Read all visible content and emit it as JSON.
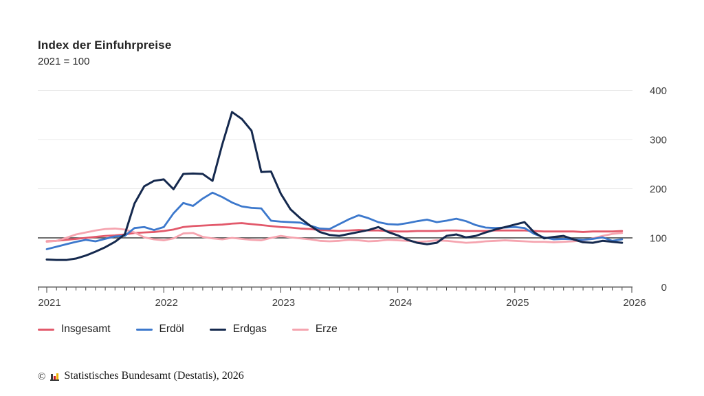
{
  "header": {
    "title": "Index der Einfuhrpreise",
    "subtitle": "2021 = 100"
  },
  "footer": {
    "copyright": "©",
    "logo_icon": "destatis-bar-chart-icon",
    "source": "Statistisches Bundesamt (Destatis), 2026"
  },
  "chart_data": {
    "type": "line",
    "title": "Index der Einfuhrpreise",
    "subtitle": "2021 = 100",
    "x_unit": "month",
    "x_start": "2021-01",
    "x_end": "2025-12",
    "x_tick_labels": [
      "2021",
      "2022",
      "2023",
      "2024",
      "2025",
      "2026"
    ],
    "ylim": [
      0,
      400
    ],
    "yticks": [
      0,
      100,
      200,
      300,
      400
    ],
    "reference_line_y": 100,
    "grid": "horizontal-light",
    "legend_position": "bottom-left",
    "style": {
      "axis_color": "#3f3f3f",
      "grid_color": "#e8e8e8",
      "tick_label_color": "#3d3d3d"
    },
    "series": [
      {
        "name": "Insgesamt",
        "color": "#e2596b",
        "values": [
          93,
          94,
          96,
          98,
          100,
          102,
          104,
          105,
          107,
          110,
          111,
          112,
          114,
          117,
          122,
          124,
          125,
          126,
          127,
          129,
          130,
          128,
          126,
          124,
          122,
          121,
          119,
          118,
          116,
          115,
          114,
          115,
          116,
          115,
          115,
          114,
          113,
          113,
          114,
          114,
          114,
          115,
          115,
          114,
          114,
          114,
          115,
          115,
          115,
          115,
          114,
          113,
          113,
          113,
          113,
          112,
          113,
          113,
          113,
          114
        ]
      },
      {
        "name": "Erdöl",
        "color": "#3c78cc",
        "values": [
          77,
          82,
          87,
          92,
          96,
          93,
          98,
          103,
          104,
          120,
          122,
          116,
          122,
          150,
          171,
          165,
          180,
          192,
          183,
          172,
          164,
          161,
          160,
          135,
          133,
          132,
          131,
          125,
          119,
          118,
          128,
          138,
          146,
          140,
          132,
          128,
          127,
          130,
          134,
          137,
          132,
          135,
          139,
          134,
          126,
          121,
          120,
          121,
          122,
          120,
          108,
          101,
          97,
          98,
          97,
          96,
          98,
          101,
          94,
          97
        ]
      },
      {
        "name": "Erdgas",
        "color": "#15294e",
        "values": [
          56,
          55,
          55,
          58,
          64,
          72,
          81,
          92,
          107,
          170,
          205,
          216,
          219,
          199,
          230,
          231,
          230,
          216,
          290,
          356,
          342,
          318,
          234,
          235,
          190,
          158,
          140,
          125,
          112,
          106,
          104,
          108,
          112,
          116,
          122,
          112,
          105,
          96,
          90,
          87,
          90,
          104,
          107,
          101,
          104,
          111,
          117,
          122,
          127,
          132,
          111,
          99,
          102,
          104,
          97,
          91,
          90,
          94,
          92,
          90
        ]
      },
      {
        "name": "Erze",
        "color": "#f5a4af",
        "values": [
          92,
          94,
          100,
          107,
          111,
          115,
          118,
          119,
          117,
          111,
          101,
          97,
          95,
          99,
          109,
          110,
          102,
          99,
          97,
          100,
          98,
          96,
          95,
          100,
          104,
          101,
          99,
          97,
          94,
          93,
          94,
          96,
          95,
          93,
          94,
          96,
          95,
          94,
          92,
          93,
          95,
          94,
          92,
          90,
          91,
          93,
          94,
          95,
          94,
          93,
          92,
          92,
          91,
          92,
          93,
          95,
          99,
          104,
          108,
          110
        ]
      }
    ]
  }
}
